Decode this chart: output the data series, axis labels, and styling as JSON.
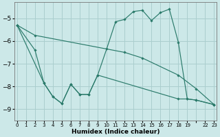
{
  "xlabel": "Humidex (Indice chaleur)",
  "bg_color": "#cce8e8",
  "line_color": "#2a7a6a",
  "grid_color": "#aacece",
  "ylim": [
    -9.5,
    -4.3
  ],
  "yticks": [
    -9,
    -8,
    -7,
    -6,
    -5
  ],
  "xtick_positions": [
    0,
    1,
    2,
    3,
    4,
    5,
    6,
    7,
    8,
    9,
    10,
    11,
    12,
    13,
    14,
    15,
    16,
    17,
    18,
    19,
    20,
    21,
    22
  ],
  "xtick_labels": [
    "0",
    "1",
    "2",
    "3",
    "4",
    "5",
    "6",
    "7",
    "8",
    "9",
    "10",
    "11",
    "12",
    "13",
    "14",
    "15",
    "16",
    "17",
    "18",
    "19",
    "",
    "22",
    "23"
  ],
  "line1_x": [
    0,
    2,
    12,
    14,
    18,
    20,
    22
  ],
  "line1_y": [
    -5.3,
    -5.75,
    -6.5,
    -6.75,
    -7.5,
    -8.1,
    -8.8
  ],
  "line2_x": [
    0,
    2,
    3,
    4,
    5,
    6,
    7,
    8,
    9,
    10,
    11,
    12,
    13,
    14,
    15,
    16,
    17,
    18,
    19,
    20,
    22
  ],
  "line2_y": [
    -5.3,
    -6.4,
    -7.85,
    -8.45,
    -8.75,
    -7.9,
    -8.35,
    -8.35,
    -7.5,
    -6.35,
    -5.15,
    -5.05,
    -4.7,
    -4.65,
    -5.1,
    -4.75,
    -4.6,
    -6.05,
    -8.55,
    -8.6,
    -8.8
  ],
  "line3_x": [
    0,
    3,
    4,
    5,
    6,
    7,
    8,
    9,
    18,
    19,
    20,
    22
  ],
  "line3_y": [
    -5.3,
    -7.85,
    -8.45,
    -8.75,
    -7.9,
    -8.35,
    -8.35,
    -7.5,
    -8.55,
    -8.55,
    -8.6,
    -8.8
  ]
}
